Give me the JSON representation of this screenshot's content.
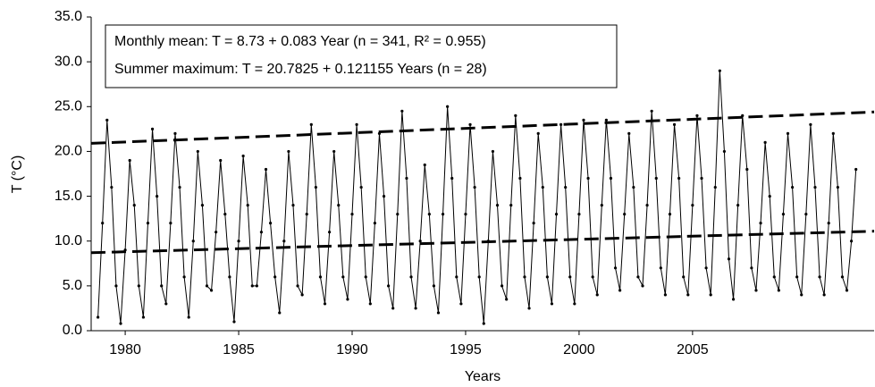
{
  "chart_data": {
    "type": "line",
    "xlabel": "Years",
    "ylabel": "T (°C)",
    "annotations": [
      "Monthly mean: T = 8.73 + 0.083 Year (n = 341, R² = 0.955)",
      "Summer maximum: T = 20.7825 + 0.121155 Years (n = 28)"
    ],
    "xlim": [
      1978.5,
      2013
    ],
    "xticks": [
      1980,
      1985,
      1990,
      1995,
      2000,
      2005
    ],
    "ylim": [
      0,
      35
    ],
    "yticks": [
      {
        "value": 0,
        "label": "0.0"
      },
      {
        "value": 5,
        "label": "5.0"
      },
      {
        "value": 10,
        "label": "10.0"
      },
      {
        "value": 15,
        "label": "15.0"
      },
      {
        "value": 20,
        "label": "20.0"
      },
      {
        "value": 25,
        "label": "25.0"
      },
      {
        "value": 30,
        "label": "30.0"
      },
      {
        "value": 35,
        "label": "35.0"
      }
    ],
    "series": [
      {
        "color": "#000000",
        "x": [
          1978.8,
          1979,
          1979.2,
          1979.4,
          1979.6,
          1979.8,
          1980,
          1980.2,
          1980.4,
          1980.6,
          1980.8,
          1981,
          1981.2,
          1981.4,
          1981.6,
          1981.8,
          1982,
          1982.2,
          1982.4,
          1982.6,
          1982.8,
          1983,
          1983.2,
          1983.4,
          1983.6,
          1983.8,
          1984,
          1984.2,
          1984.4,
          1984.6,
          1984.8,
          1985,
          1985.2,
          1985.4,
          1985.6,
          1985.8,
          1986,
          1986.2,
          1986.4,
          1986.6,
          1986.8,
          1987,
          1987.2,
          1987.4,
          1987.6,
          1987.8,
          1988,
          1988.2,
          1988.4,
          1988.6,
          1988.8,
          1989,
          1989.2,
          1989.4,
          1989.6,
          1989.8,
          1990,
          1990.2,
          1990.4,
          1990.6,
          1990.8,
          1991,
          1991.2,
          1991.4,
          1991.6,
          1991.8,
          1992,
          1992.2,
          1992.4,
          1992.6,
          1992.8,
          1993,
          1993.2,
          1993.4,
          1993.6,
          1993.8,
          1994,
          1994.2,
          1994.4,
          1994.6,
          1994.8,
          1995,
          1995.2,
          1995.4,
          1995.6,
          1995.8,
          1996,
          1996.2,
          1996.4,
          1996.6,
          1996.8,
          1997,
          1997.2,
          1997.4,
          1997.6,
          1997.8,
          1998,
          1998.2,
          1998.4,
          1998.6,
          1998.8,
          1999,
          1999.2,
          1999.4,
          1999.6,
          1999.8,
          2000,
          2000.2,
          2000.4,
          2000.6,
          2000.8,
          2001,
          2001.2,
          2001.4,
          2001.6,
          2001.8,
          2002,
          2002.2,
          2002.4,
          2002.6,
          2002.8,
          2003,
          2003.2,
          2003.4,
          2003.6,
          2003.8,
          2004,
          2004.2,
          2004.4,
          2004.6,
          2004.8,
          2005,
          2005.2,
          2005.4,
          2005.6,
          2005.8,
          2006,
          2006.2,
          2006.4,
          2006.6,
          2006.8,
          2007,
          2007.2,
          2007.4,
          2007.6,
          2007.8,
          2008,
          2008.2,
          2008.4,
          2008.6,
          2008.8,
          2009,
          2009.2,
          2009.4,
          2009.6,
          2009.8,
          2010,
          2010.2,
          2010.4,
          2010.6,
          2010.8,
          2011,
          2011.2,
          2011.4,
          2011.6,
          2011.8,
          2012,
          2012.2
        ],
        "values": [
          1.5,
          12,
          23.5,
          16,
          5,
          0.8,
          9,
          19,
          14,
          5,
          1.5,
          12,
          22.5,
          15,
          5,
          3,
          12,
          22,
          16,
          6,
          1.5,
          10,
          20,
          14,
          5,
          4.5,
          11,
          19,
          13,
          6,
          1,
          10,
          19.5,
          14,
          5,
          5,
          11,
          18,
          12,
          6,
          2,
          10,
          20,
          14,
          5,
          4,
          13,
          23,
          16,
          6,
          3,
          11,
          20,
          14,
          6,
          3.5,
          13,
          23,
          16,
          6,
          3,
          12,
          22,
          15,
          5,
          2.5,
          13,
          24.5,
          17,
          6,
          2.5,
          10,
          18.5,
          13,
          5,
          2,
          13,
          25,
          17,
          6,
          3,
          13,
          23,
          16,
          6,
          0.8,
          10,
          20,
          14,
          5,
          3.5,
          14,
          24,
          17,
          6,
          2.5,
          12,
          22,
          16,
          6,
          3,
          13,
          23,
          16,
          6,
          3,
          13,
          23.5,
          17,
          6,
          4,
          14,
          23.5,
          17,
          7,
          4.5,
          13,
          22,
          16,
          6,
          5,
          14,
          24.5,
          17,
          7,
          4,
          13,
          23,
          17,
          6,
          4,
          14,
          24,
          17,
          7,
          4,
          16,
          29,
          20,
          8,
          3.5,
          14,
          24,
          18,
          7,
          4.5,
          12,
          21,
          15,
          6,
          4.5,
          13,
          22,
          16,
          6,
          4,
          13,
          23,
          16,
          6,
          4,
          12,
          22,
          16,
          6,
          4.5,
          10,
          18
        ]
      }
    ],
    "trend_lines": [
      {
        "color": "#000000",
        "x": [
          1978.5,
          2013
        ],
        "values": [
          20.9,
          24.4
        ]
      },
      {
        "color": "#000000",
        "x": [
          1978.5,
          2013
        ],
        "values": [
          8.7,
          11.1
        ]
      }
    ]
  }
}
